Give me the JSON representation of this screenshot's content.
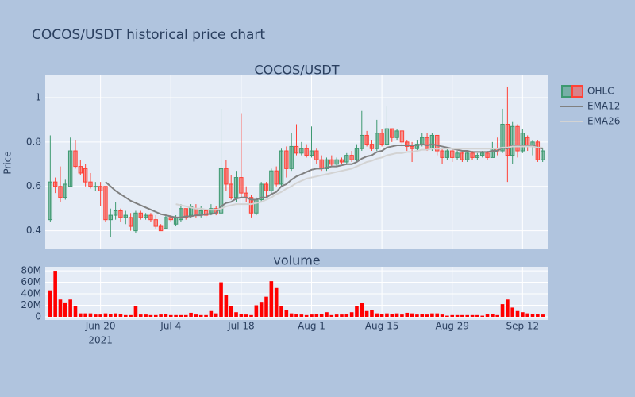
{
  "chart_data": {
    "type": "candlestick",
    "title": "COCOS/USDT historical price chart",
    "subplot_titles": [
      "COCOS/USDT",
      "volume"
    ],
    "ylabel": "Price",
    "x": [
      "2021-06-10",
      "2021-06-11",
      "2021-06-12",
      "2021-06-13",
      "2021-06-14",
      "2021-06-15",
      "2021-06-16",
      "2021-06-17",
      "2021-06-18",
      "2021-06-19",
      "2021-06-20",
      "2021-06-21",
      "2021-06-22",
      "2021-06-23",
      "2021-06-24",
      "2021-06-25",
      "2021-06-26",
      "2021-06-27",
      "2021-06-28",
      "2021-06-29",
      "2021-06-30",
      "2021-07-01",
      "2021-07-02",
      "2021-07-03",
      "2021-07-04",
      "2021-07-05",
      "2021-07-06",
      "2021-07-07",
      "2021-07-08",
      "2021-07-09",
      "2021-07-10",
      "2021-07-11",
      "2021-07-12",
      "2021-07-13",
      "2021-07-14",
      "2021-07-15",
      "2021-07-16",
      "2021-07-17",
      "2021-07-18",
      "2021-07-19",
      "2021-07-20",
      "2021-07-21",
      "2021-07-22",
      "2021-07-23",
      "2021-07-24",
      "2021-07-25",
      "2021-07-26",
      "2021-07-27",
      "2021-07-28",
      "2021-07-29",
      "2021-07-30",
      "2021-07-31",
      "2021-08-01",
      "2021-08-02",
      "2021-08-03",
      "2021-08-04",
      "2021-08-05",
      "2021-08-06",
      "2021-08-07",
      "2021-08-08",
      "2021-08-09",
      "2021-08-10",
      "2021-08-11",
      "2021-08-12",
      "2021-08-13",
      "2021-08-14",
      "2021-08-15",
      "2021-08-16",
      "2021-08-17",
      "2021-08-18",
      "2021-08-19",
      "2021-08-20",
      "2021-08-21",
      "2021-08-22",
      "2021-08-23",
      "2021-08-24",
      "2021-08-25",
      "2021-08-26",
      "2021-08-27",
      "2021-08-28",
      "2021-08-29",
      "2021-08-30",
      "2021-08-31",
      "2021-09-01",
      "2021-09-02",
      "2021-09-03",
      "2021-09-04",
      "2021-09-05",
      "2021-09-06",
      "2021-09-07",
      "2021-09-08",
      "2021-09-09",
      "2021-09-10",
      "2021-09-11",
      "2021-09-12",
      "2021-09-13",
      "2021-09-14",
      "2021-09-15",
      "2021-09-16"
    ],
    "xlim": [
      "2021-06-09",
      "2021-09-17"
    ],
    "xticks": [
      {
        "value": "2021-06-20",
        "label": "Jun 20"
      },
      {
        "value": "2021-07-04",
        "label": "Jul 4"
      },
      {
        "value": "2021-07-18",
        "label": "Jul 18"
      },
      {
        "value": "2021-08-01",
        "label": "Aug 1"
      },
      {
        "value": "2021-08-15",
        "label": "Aug 15"
      },
      {
        "value": "2021-08-29",
        "label": "Aug 29"
      },
      {
        "value": "2021-09-12",
        "label": "Sep 12"
      }
    ],
    "x_year_label": "2021",
    "ohlc_name": "OHLC",
    "increasing_color": "#3d9970",
    "decreasing_color": "#ff4136",
    "open": [
      0.45,
      0.62,
      0.6,
      0.55,
      0.6,
      0.76,
      0.69,
      0.68,
      0.62,
      0.6,
      0.6,
      0.6,
      0.45,
      0.47,
      0.49,
      0.46,
      0.46,
      0.4,
      0.48,
      0.46,
      0.47,
      0.45,
      0.42,
      0.41,
      0.46,
      0.43,
      0.45,
      0.5,
      0.47,
      0.5,
      0.47,
      0.49,
      0.48,
      0.5,
      0.48,
      0.68,
      0.61,
      0.55,
      0.64,
      0.57,
      0.55,
      0.48,
      0.54,
      0.61,
      0.58,
      0.67,
      0.61,
      0.76,
      0.68,
      0.78,
      0.75,
      0.77,
      0.74,
      0.76,
      0.72,
      0.68,
      0.72,
      0.7,
      0.72,
      0.71,
      0.74,
      0.72,
      0.77,
      0.83,
      0.79,
      0.77,
      0.84,
      0.79,
      0.86,
      0.82,
      0.85,
      0.8,
      0.78,
      0.77,
      0.79,
      0.82,
      0.77,
      0.83,
      0.76,
      0.73,
      0.76,
      0.73,
      0.75,
      0.72,
      0.75,
      0.73,
      0.74,
      0.75,
      0.73,
      0.77,
      0.76,
      0.88,
      0.74,
      0.87,
      0.76,
      0.82,
      0.78,
      0.8,
      0.72
    ],
    "high": [
      0.83,
      0.64,
      0.69,
      0.63,
      0.82,
      0.81,
      0.72,
      0.7,
      0.66,
      0.62,
      0.62,
      0.6,
      0.5,
      0.53,
      0.5,
      0.49,
      0.48,
      0.49,
      0.49,
      0.48,
      0.48,
      0.47,
      0.43,
      0.47,
      0.47,
      0.47,
      0.52,
      0.5,
      0.52,
      0.52,
      0.51,
      0.5,
      0.52,
      0.51,
      0.95,
      0.72,
      0.65,
      0.67,
      0.93,
      0.6,
      0.56,
      0.55,
      0.62,
      0.62,
      0.68,
      0.69,
      0.77,
      0.78,
      0.84,
      0.88,
      0.8,
      0.79,
      0.87,
      0.77,
      0.74,
      0.73,
      0.74,
      0.73,
      0.73,
      0.75,
      0.76,
      0.79,
      0.94,
      0.85,
      0.81,
      0.9,
      0.86,
      0.96,
      0.86,
      0.86,
      0.85,
      0.81,
      0.8,
      0.81,
      0.84,
      0.84,
      0.84,
      0.83,
      0.77,
      0.77,
      0.77,
      0.76,
      0.76,
      0.76,
      0.76,
      0.75,
      0.76,
      0.76,
      0.8,
      0.82,
      0.95,
      1.05,
      0.89,
      0.88,
      0.86,
      0.83,
      0.81,
      0.81,
      0.77
    ],
    "low": [
      0.44,
      0.57,
      0.53,
      0.54,
      0.6,
      0.68,
      0.65,
      0.6,
      0.59,
      0.58,
      0.51,
      0.44,
      0.37,
      0.45,
      0.44,
      0.43,
      0.4,
      0.39,
      0.45,
      0.45,
      0.44,
      0.41,
      0.4,
      0.41,
      0.44,
      0.42,
      0.44,
      0.45,
      0.46,
      0.46,
      0.46,
      0.46,
      0.47,
      0.47,
      0.48,
      0.58,
      0.54,
      0.53,
      0.55,
      0.53,
      0.46,
      0.47,
      0.53,
      0.55,
      0.57,
      0.6,
      0.6,
      0.64,
      0.67,
      0.74,
      0.74,
      0.73,
      0.73,
      0.7,
      0.67,
      0.67,
      0.69,
      0.69,
      0.7,
      0.7,
      0.71,
      0.71,
      0.76,
      0.78,
      0.76,
      0.76,
      0.78,
      0.78,
      0.8,
      0.81,
      0.78,
      0.76,
      0.71,
      0.76,
      0.78,
      0.76,
      0.76,
      0.74,
      0.7,
      0.72,
      0.71,
      0.72,
      0.71,
      0.71,
      0.72,
      0.72,
      0.73,
      0.72,
      0.73,
      0.74,
      0.75,
      0.62,
      0.7,
      0.73,
      0.75,
      0.76,
      0.74,
      0.71,
      0.71
    ],
    "close": [
      0.62,
      0.6,
      0.55,
      0.61,
      0.76,
      0.69,
      0.66,
      0.62,
      0.6,
      0.6,
      0.58,
      0.45,
      0.47,
      0.49,
      0.46,
      0.47,
      0.42,
      0.48,
      0.46,
      0.47,
      0.45,
      0.42,
      0.4,
      0.46,
      0.45,
      0.46,
      0.5,
      0.46,
      0.51,
      0.47,
      0.49,
      0.47,
      0.5,
      0.48,
      0.68,
      0.61,
      0.55,
      0.64,
      0.57,
      0.55,
      0.48,
      0.54,
      0.61,
      0.58,
      0.67,
      0.61,
      0.76,
      0.68,
      0.78,
      0.75,
      0.77,
      0.74,
      0.76,
      0.72,
      0.68,
      0.72,
      0.7,
      0.72,
      0.71,
      0.74,
      0.72,
      0.77,
      0.83,
      0.79,
      0.77,
      0.84,
      0.79,
      0.86,
      0.82,
      0.85,
      0.8,
      0.78,
      0.77,
      0.79,
      0.82,
      0.77,
      0.83,
      0.76,
      0.73,
      0.76,
      0.73,
      0.75,
      0.72,
      0.75,
      0.73,
      0.74,
      0.75,
      0.73,
      0.77,
      0.76,
      0.88,
      0.74,
      0.87,
      0.76,
      0.84,
      0.78,
      0.8,
      0.72,
      0.76
    ],
    "series": [
      {
        "name": "EMA12",
        "color": "#808080",
        "values": [
          null,
          null,
          null,
          null,
          null,
          null,
          null,
          null,
          null,
          null,
          null,
          0.62,
          0.6,
          0.58,
          0.565,
          0.55,
          0.535,
          0.525,
          0.515,
          0.505,
          0.495,
          0.485,
          0.475,
          0.47,
          0.465,
          0.46,
          0.46,
          0.465,
          0.465,
          0.47,
          0.47,
          0.475,
          0.475,
          0.48,
          0.51,
          0.525,
          0.53,
          0.545,
          0.55,
          0.55,
          0.54,
          0.54,
          0.55,
          0.55,
          0.565,
          0.575,
          0.6,
          0.61,
          0.63,
          0.645,
          0.655,
          0.665,
          0.675,
          0.68,
          0.68,
          0.685,
          0.69,
          0.69,
          0.695,
          0.7,
          0.7,
          0.71,
          0.725,
          0.735,
          0.74,
          0.755,
          0.76,
          0.775,
          0.78,
          0.785,
          0.785,
          0.785,
          0.785,
          0.785,
          0.79,
          0.785,
          0.79,
          0.785,
          0.78,
          0.775,
          0.77,
          0.765,
          0.76,
          0.76,
          0.755,
          0.755,
          0.755,
          0.755,
          0.76,
          0.76,
          0.775,
          0.77,
          0.785,
          0.78,
          0.785,
          0.785,
          0.785,
          0.775,
          0.77
        ]
      },
      {
        "name": "EMA26",
        "color": "#d3d3d3",
        "values": [
          null,
          null,
          null,
          null,
          null,
          null,
          null,
          null,
          null,
          null,
          null,
          null,
          null,
          null,
          null,
          null,
          null,
          null,
          null,
          null,
          null,
          null,
          null,
          null,
          null,
          0.52,
          0.515,
          0.51,
          0.505,
          0.5,
          0.5,
          0.495,
          0.495,
          0.495,
          0.5,
          0.51,
          0.515,
          0.52,
          0.52,
          0.52,
          0.52,
          0.525,
          0.53,
          0.54,
          0.55,
          0.565,
          0.575,
          0.59,
          0.6,
          0.615,
          0.625,
          0.635,
          0.64,
          0.645,
          0.65,
          0.655,
          0.66,
          0.665,
          0.67,
          0.675,
          0.68,
          0.69,
          0.7,
          0.71,
          0.715,
          0.725,
          0.73,
          0.74,
          0.745,
          0.75,
          0.75,
          0.755,
          0.755,
          0.76,
          0.765,
          0.765,
          0.77,
          0.77,
          0.77,
          0.77,
          0.77,
          0.77,
          0.77,
          0.77,
          0.77,
          0.77,
          0.77,
          0.77,
          0.77,
          0.77,
          0.775,
          0.775,
          0.78,
          0.78,
          0.78,
          0.78,
          0.78,
          0.775,
          0.775
        ]
      }
    ],
    "ylim": [
      0.32,
      1.1
    ],
    "yticks": [
      0.4,
      0.6,
      0.8,
      1
    ],
    "grid": true,
    "legend": "right",
    "volume": {
      "color": "#ff0000",
      "ylim": [
        0,
        87000000
      ],
      "yticks": [
        {
          "value": 0,
          "label": "0"
        },
        {
          "value": 20000000,
          "label": "20M"
        },
        {
          "value": 40000000,
          "label": "40M"
        },
        {
          "value": 60000000,
          "label": "60M"
        },
        {
          "value": 80000000,
          "label": "80M"
        }
      ],
      "values": [
        46000000,
        80000000,
        30000000,
        25000000,
        30000000,
        18000000,
        6000000,
        6000000,
        6000000,
        4000000,
        4000000,
        6000000,
        5000000,
        6000000,
        5000000,
        3000000,
        3000000,
        18000000,
        4000000,
        4000000,
        3000000,
        3000000,
        4000000,
        5000000,
        3000000,
        3000000,
        3000000,
        3000000,
        7000000,
        4000000,
        3000000,
        3000000,
        10000000,
        6000000,
        60000000,
        38000000,
        18000000,
        8000000,
        5000000,
        4000000,
        3000000,
        20000000,
        26000000,
        35000000,
        62000000,
        50000000,
        18000000,
        12000000,
        6000000,
        5000000,
        4000000,
        3000000,
        4000000,
        5000000,
        5000000,
        8000000,
        3000000,
        4000000,
        4000000,
        5000000,
        8000000,
        18000000,
        24000000,
        10000000,
        12000000,
        6000000,
        5000000,
        6000000,
        5000000,
        6000000,
        4000000,
        7000000,
        6000000,
        4000000,
        5000000,
        4000000,
        6000000,
        6000000,
        4000000,
        2000000,
        3000000,
        3000000,
        3000000,
        3000000,
        3000000,
        3000000,
        2000000,
        5000000,
        5000000,
        3000000,
        22000000,
        30000000,
        16000000,
        10000000,
        8000000,
        6000000,
        5000000,
        5000000,
        4000000
      ]
    }
  }
}
